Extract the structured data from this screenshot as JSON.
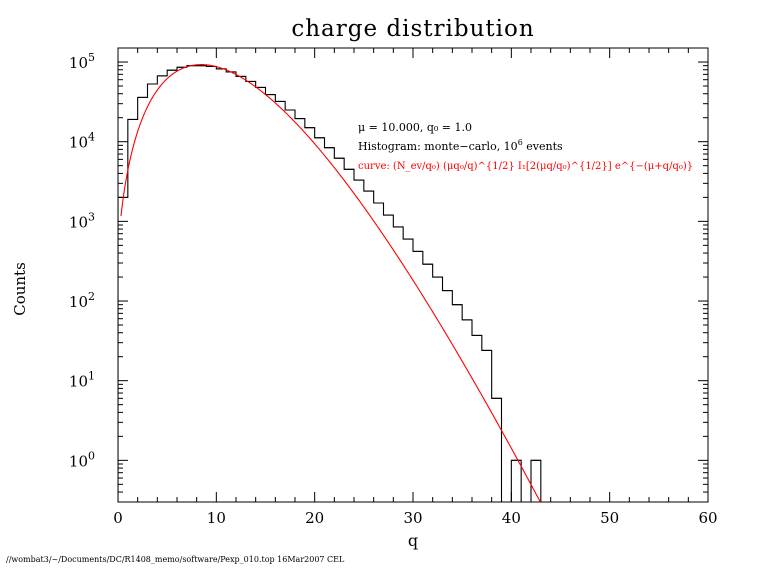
{
  "chart_data": {
    "type": "histogram",
    "title": "charge distribution",
    "xlabel": "q",
    "ylabel": "Counts",
    "x_scale": "linear",
    "y_scale": "log",
    "xlim": [
      0,
      60
    ],
    "ylim": [
      0.3,
      150000
    ],
    "x_ticks": [
      0,
      10,
      20,
      30,
      40,
      50,
      60
    ],
    "y_ticks": [
      {
        "value": 1,
        "base": "10",
        "exp": "0"
      },
      {
        "value": 10,
        "base": "10",
        "exp": "1"
      },
      {
        "value": 100,
        "base": "10",
        "exp": "2"
      },
      {
        "value": 1000,
        "base": "10",
        "exp": "3"
      },
      {
        "value": 10000,
        "base": "10",
        "exp": "4"
      },
      {
        "value": 100000,
        "base": "10",
        "exp": "5"
      }
    ],
    "histogram": {
      "bin_width": 1,
      "bin_start": 0,
      "color": "#000000",
      "values": [
        2000,
        19000,
        36000,
        53000,
        67000,
        79000,
        86000,
        90000,
        90000,
        88000,
        82000,
        75000,
        66000,
        57000,
        48000,
        39000,
        32000,
        25000,
        19500,
        15000,
        11200,
        8400,
        6200,
        4500,
        3300,
        2400,
        1700,
        1200,
        850,
        600,
        420,
        290,
        200,
        135,
        90,
        58,
        37,
        24,
        6,
        0,
        1,
        0,
        1,
        0,
        0,
        0,
        0,
        0,
        0,
        0,
        0,
        0,
        0,
        0,
        0,
        0,
        0,
        0,
        0,
        0
      ]
    },
    "curve": {
      "color": "#ff0000",
      "mu": 10.0,
      "q0": 1.0,
      "n_events": 1000000
    },
    "annotations": {
      "params_text": "μ = 10.000, q₀ = 1.0",
      "histogram_text_prefix": "Histogram: monte−carlo, 10",
      "histogram_text_exp": "6",
      "histogram_text_suffix": " events",
      "curve_text": "curve: (N_ev/q₀) (μq₀/q)^{1/2} I₁[2(μq/q₀)^{1/2}] e^{−(μ+q/q₀)}"
    },
    "footer": "//wombat3/~/Documents/DC/R1408_memo/software/Pexp_010.top  16Mar2007 CEL",
    "grid": false
  }
}
